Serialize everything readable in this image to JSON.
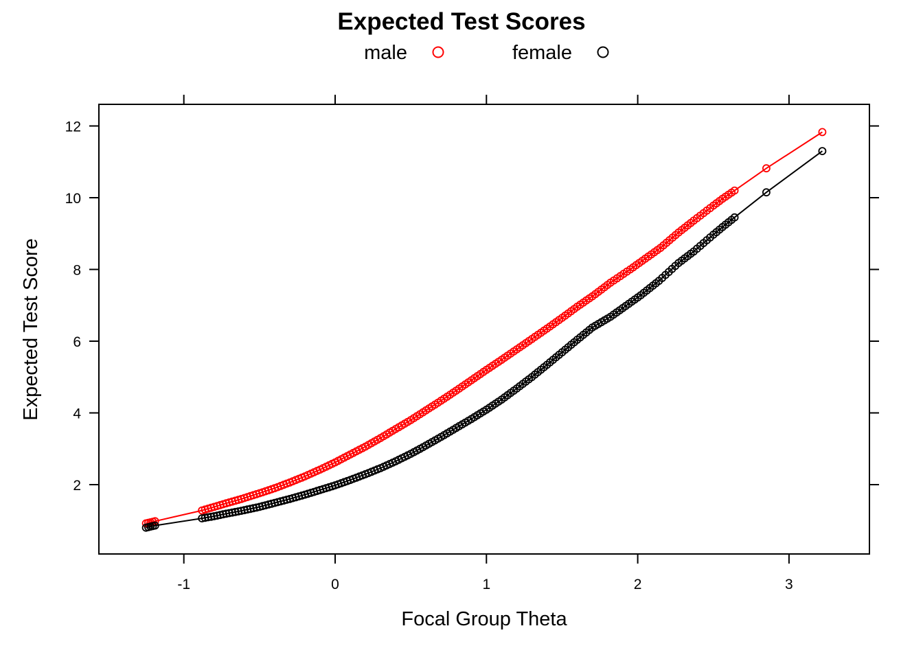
{
  "chart_data": {
    "type": "line",
    "title": "Expected Test Scores",
    "xlabel": "Focal Group Theta",
    "ylabel": "Expected Test Score",
    "xlim": [
      -1.56,
      3.53
    ],
    "ylim": [
      0.3,
      12.6
    ],
    "x_ticks": [
      -1,
      0,
      1,
      2,
      3
    ],
    "y_ticks": [
      2,
      4,
      6,
      8,
      10,
      12
    ],
    "grid": false,
    "legend_position": "top",
    "marker": "open-circle",
    "series": [
      {
        "name": "male",
        "color": "#FF0000",
        "points": [
          [
            -1.25,
            0.92
          ],
          [
            -1.22,
            0.95
          ],
          [
            -1.19,
            0.98
          ],
          [
            -0.88,
            1.28
          ],
          [
            -0.8,
            1.38
          ],
          [
            -0.72,
            1.48
          ],
          [
            -0.62,
            1.6
          ],
          [
            -0.5,
            1.76
          ],
          [
            -0.4,
            1.9
          ],
          [
            -0.3,
            2.06
          ],
          [
            -0.2,
            2.23
          ],
          [
            -0.1,
            2.42
          ],
          [
            0.0,
            2.62
          ],
          [
            0.1,
            2.84
          ],
          [
            0.2,
            3.06
          ],
          [
            0.3,
            3.3
          ],
          [
            0.4,
            3.55
          ],
          [
            0.5,
            3.8
          ],
          [
            0.6,
            4.07
          ],
          [
            0.7,
            4.34
          ],
          [
            0.8,
            4.62
          ],
          [
            0.9,
            4.91
          ],
          [
            1.0,
            5.2
          ],
          [
            1.1,
            5.48
          ],
          [
            1.2,
            5.77
          ],
          [
            1.3,
            6.06
          ],
          [
            1.4,
            6.35
          ],
          [
            1.5,
            6.65
          ],
          [
            1.6,
            6.96
          ],
          [
            1.7,
            7.25
          ],
          [
            1.82,
            7.63
          ],
          [
            1.95,
            8.0
          ],
          [
            2.05,
            8.3
          ],
          [
            2.15,
            8.6
          ],
          [
            2.27,
            9.03
          ],
          [
            2.37,
            9.36
          ],
          [
            2.5,
            9.78
          ],
          [
            2.56,
            9.97
          ],
          [
            2.64,
            10.2
          ],
          [
            2.85,
            10.82
          ],
          [
            3.22,
            11.83
          ]
        ]
      },
      {
        "name": "female",
        "color": "#000000",
        "points": [
          [
            -1.25,
            0.8
          ],
          [
            -1.22,
            0.83
          ],
          [
            -1.19,
            0.86
          ],
          [
            -0.88,
            1.06
          ],
          [
            -0.8,
            1.12
          ],
          [
            -0.72,
            1.19
          ],
          [
            -0.62,
            1.27
          ],
          [
            -0.5,
            1.38
          ],
          [
            -0.4,
            1.49
          ],
          [
            -0.3,
            1.6
          ],
          [
            -0.2,
            1.72
          ],
          [
            -0.1,
            1.85
          ],
          [
            0.0,
            1.98
          ],
          [
            0.1,
            2.13
          ],
          [
            0.2,
            2.29
          ],
          [
            0.3,
            2.46
          ],
          [
            0.4,
            2.65
          ],
          [
            0.5,
            2.86
          ],
          [
            0.6,
            3.09
          ],
          [
            0.7,
            3.33
          ],
          [
            0.8,
            3.58
          ],
          [
            0.9,
            3.83
          ],
          [
            1.0,
            4.09
          ],
          [
            1.1,
            4.37
          ],
          [
            1.2,
            4.68
          ],
          [
            1.3,
            5.0
          ],
          [
            1.4,
            5.34
          ],
          [
            1.5,
            5.69
          ],
          [
            1.6,
            6.04
          ],
          [
            1.7,
            6.38
          ],
          [
            1.82,
            6.68
          ],
          [
            1.92,
            6.98
          ],
          [
            2.02,
            7.28
          ],
          [
            2.14,
            7.68
          ],
          [
            2.27,
            8.18
          ],
          [
            2.37,
            8.5
          ],
          [
            2.5,
            8.97
          ],
          [
            2.56,
            9.18
          ],
          [
            2.64,
            9.45
          ],
          [
            2.85,
            10.15
          ],
          [
            3.22,
            11.3
          ]
        ]
      }
    ]
  }
}
